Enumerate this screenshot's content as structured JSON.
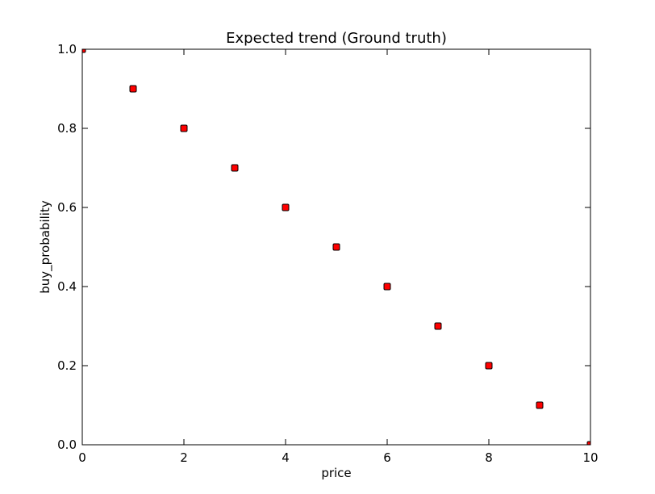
{
  "chart_data": {
    "type": "scatter",
    "title": "Expected trend (Ground truth)",
    "xlabel": "price",
    "ylabel": "buy_probability",
    "xlim": [
      0,
      10
    ],
    "ylim": [
      0.0,
      1.0
    ],
    "xticks": [
      0,
      2,
      4,
      6,
      8,
      10
    ],
    "xtick_labels": [
      "0",
      "2",
      "4",
      "6",
      "8",
      "10"
    ],
    "yticks": [
      0.0,
      0.2,
      0.4,
      0.6,
      0.8,
      1.0
    ],
    "ytick_labels": [
      "0.0",
      "0.2",
      "0.4",
      "0.6",
      "0.8",
      "1.0"
    ],
    "grid": false,
    "legend": "none",
    "marker": "square",
    "marker_color": "#ff0000",
    "marker_edge_color": "#000000",
    "x": [
      0,
      1,
      2,
      3,
      4,
      5,
      6,
      7,
      8,
      9,
      10
    ],
    "y": [
      1.0,
      0.9,
      0.8,
      0.7,
      0.6,
      0.5,
      0.4,
      0.3,
      0.2,
      0.1,
      0.0
    ]
  }
}
